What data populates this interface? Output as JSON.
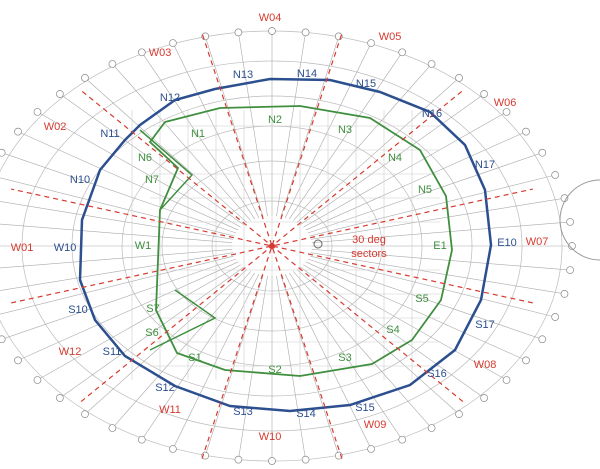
{
  "sector_labels": [
    "W01",
    "W02",
    "W03",
    "W04",
    "W05",
    "W06",
    "W07",
    "W08",
    "W09",
    "W10",
    "W11",
    "W12"
  ],
  "outer_labels": [
    "N10",
    "N11",
    "N12",
    "N13",
    "N14",
    "N15",
    "N16",
    "N17",
    "E10",
    "S17",
    "S16",
    "S15",
    "S14",
    "S13",
    "S12",
    "S11",
    "S10",
    "W10"
  ],
  "inner_labels": [
    "N1",
    "N2",
    "N3",
    "N4",
    "N5",
    "E1",
    "S5",
    "S4",
    "S3",
    "S2",
    "S1",
    "S6",
    "S7",
    "W1",
    "N7",
    "N6"
  ],
  "annotation": [
    "30 deg",
    "sectors"
  ]
}
